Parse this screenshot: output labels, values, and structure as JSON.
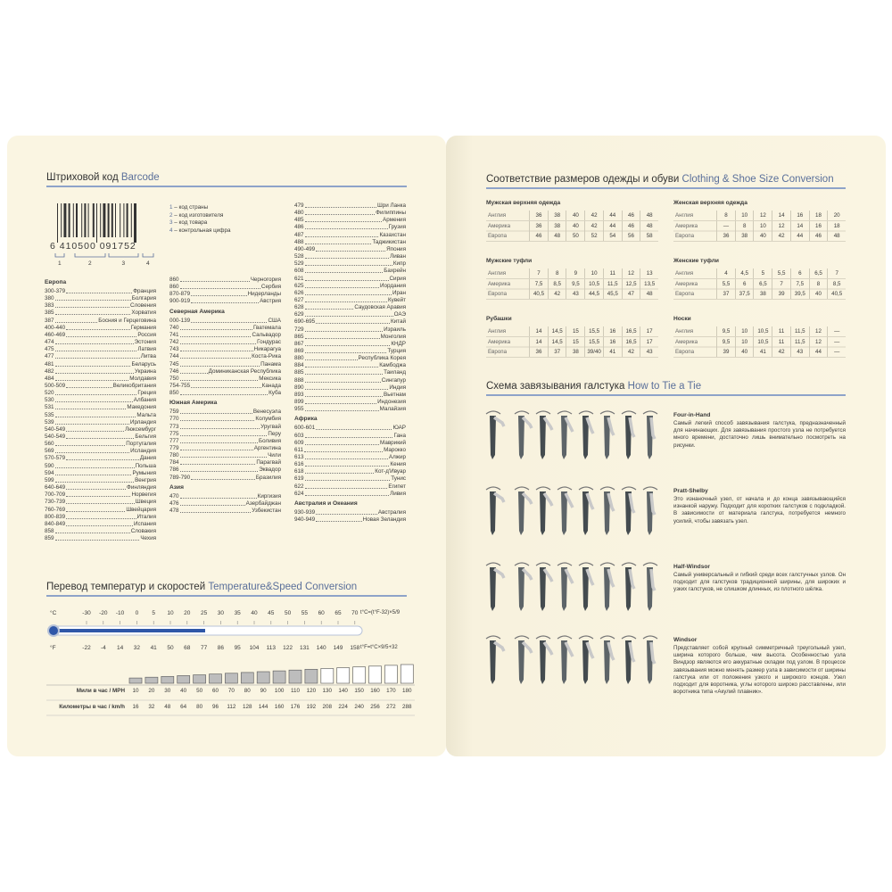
{
  "barcode": {
    "title": "Штриховой код",
    "title_en": "Barcode",
    "digits": "6  410500  091752",
    "legend": [
      {
        "num": "1",
        "text": "– код страны"
      },
      {
        "num": "2",
        "text": "– код изготовителя"
      },
      {
        "num": "3",
        "text": "– код товара"
      },
      {
        "num": "4",
        "text": "– контрольная цифра"
      }
    ],
    "columns": [
      {
        "sections": [
          {
            "heading": "Европа",
            "entries": [
              {
                "code": "300-379",
                "name": "Франция"
              },
              {
                "code": "380",
                "name": "Болгария"
              },
              {
                "code": "383",
                "name": "Словения"
              },
              {
                "code": "385",
                "name": "Хорватия"
              },
              {
                "code": "387",
                "name": "Босния и Герцеговина"
              },
              {
                "code": "400-440",
                "name": "Германия"
              },
              {
                "code": "460-469",
                "name": "Россия"
              },
              {
                "code": "474",
                "name": "Эстония"
              },
              {
                "code": "475",
                "name": "Латвия"
              },
              {
                "code": "477",
                "name": "Литва"
              },
              {
                "code": "481",
                "name": "Беларусь"
              },
              {
                "code": "482",
                "name": "Украина"
              },
              {
                "code": "484",
                "name": "Молдавия"
              },
              {
                "code": "500-509",
                "name": "Великобритания"
              },
              {
                "code": "520",
                "name": "Греция"
              },
              {
                "code": "530",
                "name": "Албания"
              },
              {
                "code": "531",
                "name": "Македония"
              },
              {
                "code": "535",
                "name": "Мальта"
              },
              {
                "code": "539",
                "name": "Ирландия"
              },
              {
                "code": "540-549",
                "name": "Люксембург"
              },
              {
                "code": "540-549",
                "name": "Бельгия"
              },
              {
                "code": "560",
                "name": "Португалия"
              },
              {
                "code": "569",
                "name": "Исландия"
              },
              {
                "code": "570-579",
                "name": "Дания"
              },
              {
                "code": "590",
                "name": "Польша"
              },
              {
                "code": "594",
                "name": "Румыния"
              },
              {
                "code": "599",
                "name": "Венгрия"
              },
              {
                "code": "640-649",
                "name": "Финляндия"
              },
              {
                "code": "700-709",
                "name": "Норвегия"
              },
              {
                "code": "730-739",
                "name": "Швеция"
              },
              {
                "code": "760-769",
                "name": "Швейцария"
              },
              {
                "code": "800-839",
                "name": "Италия"
              },
              {
                "code": "840-849",
                "name": "Испания"
              },
              {
                "code": "858",
                "name": "Словакия"
              },
              {
                "code": "859",
                "name": "Чехия"
              }
            ]
          }
        ]
      },
      {
        "sections": [
          {
            "entries": [
              {
                "code": "860",
                "name": "Черногория"
              },
              {
                "code": "860",
                "name": "Сербия"
              },
              {
                "code": "870-879",
                "name": "Нидерланды"
              },
              {
                "code": "900-919",
                "name": "Австрия"
              }
            ]
          },
          {
            "heading": "Северная Америка",
            "entries": [
              {
                "code": "000-139",
                "name": "США"
              },
              {
                "code": "740",
                "name": "Гватемала"
              },
              {
                "code": "741",
                "name": "Сальвадор"
              },
              {
                "code": "742",
                "name": "Гондурас"
              },
              {
                "code": "743",
                "name": "Никарагуа"
              },
              {
                "code": "744",
                "name": "Коста-Рика"
              },
              {
                "code": "745",
                "name": "Панама"
              },
              {
                "code": "746",
                "name": "Доминиканская Республика"
              },
              {
                "code": "750",
                "name": "Мексика"
              },
              {
                "code": "754-755",
                "name": "Канада"
              },
              {
                "code": "850",
                "name": "Куба"
              }
            ]
          },
          {
            "heading": "Южная Америка",
            "entries": [
              {
                "code": "759",
                "name": "Венесуэла"
              },
              {
                "code": "770",
                "name": "Колумбия"
              },
              {
                "code": "773",
                "name": "Уругвай"
              },
              {
                "code": "775",
                "name": "Перу"
              },
              {
                "code": "777",
                "name": "Боливия"
              },
              {
                "code": "779",
                "name": "Аргентина"
              },
              {
                "code": "780",
                "name": "Чили"
              },
              {
                "code": "784",
                "name": "Парагвай"
              },
              {
                "code": "786",
                "name": "Эквадор"
              },
              {
                "code": "789-790",
                "name": "Бразилия"
              }
            ]
          },
          {
            "heading": "Азия",
            "entries": [
              {
                "code": "470",
                "name": "Киргизия"
              },
              {
                "code": "476",
                "name": "Азербайджан"
              },
              {
                "code": "478",
                "name": "Узбекистан"
              }
            ]
          }
        ]
      },
      {
        "sections": [
          {
            "entries": [
              {
                "code": "479",
                "name": "Шри Ланка"
              },
              {
                "code": "480",
                "name": "Филиппины"
              },
              {
                "code": "485",
                "name": "Армения"
              },
              {
                "code": "486",
                "name": "Грузия"
              },
              {
                "code": "487",
                "name": "Казахстан"
              },
              {
                "code": "488",
                "name": "Таджикистан"
              },
              {
                "code": "490-499",
                "name": "Япония"
              },
              {
                "code": "528",
                "name": "Ливан"
              },
              {
                "code": "529",
                "name": "Кипр"
              },
              {
                "code": "608",
                "name": "Бахрейн"
              },
              {
                "code": "621",
                "name": "Сирия"
              },
              {
                "code": "625",
                "name": "Иордания"
              },
              {
                "code": "626",
                "name": "Иран"
              },
              {
                "code": "627",
                "name": "Кувейт"
              },
              {
                "code": "628",
                "name": "Саудовская Аравия"
              },
              {
                "code": "629",
                "name": "ОАЭ"
              },
              {
                "code": "690-695",
                "name": "Китай"
              },
              {
                "code": "729",
                "name": "Израиль"
              },
              {
                "code": "865",
                "name": "Монголия"
              },
              {
                "code": "867",
                "name": "КНДР"
              },
              {
                "code": "869",
                "name": "Турция"
              },
              {
                "code": "880",
                "name": "Республика Корея"
              },
              {
                "code": "884",
                "name": "Камбоджа"
              },
              {
                "code": "885",
                "name": "Таиланд"
              },
              {
                "code": "888",
                "name": "Сингапур"
              },
              {
                "code": "890",
                "name": "Индия"
              },
              {
                "code": "893",
                "name": "Вьетнам"
              },
              {
                "code": "899",
                "name": "Индонезия"
              },
              {
                "code": "955",
                "name": "Малайзия"
              }
            ]
          },
          {
            "heading": "Африка",
            "entries": [
              {
                "code": "600-601",
                "name": "ЮАР"
              },
              {
                "code": "603",
                "name": "Гана"
              },
              {
                "code": "609",
                "name": "Маврикий"
              },
              {
                "code": "611",
                "name": "Марокко"
              },
              {
                "code": "613",
                "name": "Алжир"
              },
              {
                "code": "616",
                "name": "Кения"
              },
              {
                "code": "618",
                "name": "Кот-д'Ивуар"
              },
              {
                "code": "619",
                "name": "Тунис"
              },
              {
                "code": "622",
                "name": "Египет"
              },
              {
                "code": "624",
                "name": "Ливия"
              }
            ]
          },
          {
            "heading": "Австралия и Океания",
            "entries": [
              {
                "code": "930-939",
                "name": "Австралия"
              },
              {
                "code": "940-949",
                "name": "Новая Зеландия"
              }
            ]
          }
        ]
      }
    ]
  },
  "conversion": {
    "title": "Перевод температур и скоростей",
    "title_en": "Temperature&Speed Conversion",
    "c_label": "°C",
    "f_label": "°F",
    "celsius": [
      -30,
      -20,
      -10,
      0,
      5,
      10,
      20,
      25,
      30,
      35,
      40,
      45,
      50,
      55,
      60,
      65,
      70
    ],
    "fahrenheit": [
      -22,
      -4,
      14,
      32,
      41,
      50,
      68,
      77,
      86,
      95,
      104,
      113,
      122,
      131,
      140,
      149,
      158
    ],
    "formula_c": "t°C=(t°F-32)×5/9",
    "formula_f": "t°F=t°C×9/5+32",
    "mph_label": "Мили в час / MPH",
    "kmh_label": "Километры в час / km/h",
    "mph": [
      10,
      20,
      30,
      40,
      50,
      60,
      70,
      80,
      90,
      100,
      110,
      120,
      130,
      140,
      150,
      160,
      170,
      180
    ],
    "kmh": [
      16,
      32,
      48,
      64,
      80,
      96,
      112,
      128,
      144,
      160,
      176,
      192,
      208,
      224,
      240,
      256,
      272,
      288
    ]
  },
  "sizes": {
    "title": "Соответствие размеров одежды и обуви",
    "title_en": "Clothing & Shoe Size Conversion",
    "tables": [
      {
        "title": "Мужская верхняя одежда",
        "rows": [
          {
            "label": "Англия",
            "cells": [
              "36",
              "38",
              "40",
              "42",
              "44",
              "46",
              "48"
            ]
          },
          {
            "label": "Америка",
            "cells": [
              "36",
              "38",
              "40",
              "42",
              "44",
              "46",
              "48"
            ]
          },
          {
            "label": "Европа",
            "cells": [
              "46",
              "48",
              "50",
              "52",
              "54",
              "56",
              "58"
            ]
          }
        ]
      },
      {
        "title": "Женская верхняя одежда",
        "rows": [
          {
            "label": "Англия",
            "cells": [
              "8",
              "10",
              "12",
              "14",
              "16",
              "18",
              "20"
            ]
          },
          {
            "label": "Америка",
            "cells": [
              "—",
              "8",
              "10",
              "12",
              "14",
              "16",
              "18"
            ]
          },
          {
            "label": "Европа",
            "cells": [
              "36",
              "38",
              "40",
              "42",
              "44",
              "46",
              "48"
            ]
          }
        ]
      },
      {
        "title": "Мужские туфли",
        "rows": [
          {
            "label": "Англия",
            "cells": [
              "7",
              "8",
              "9",
              "10",
              "11",
              "12",
              "13"
            ]
          },
          {
            "label": "Америка",
            "cells": [
              "7,5",
              "8,5",
              "9,5",
              "10,5",
              "11,5",
              "12,5",
              "13,5"
            ]
          },
          {
            "label": "Европа",
            "cells": [
              "40,5",
              "42",
              "43",
              "44,5",
              "45,5",
              "47",
              "48"
            ]
          }
        ]
      },
      {
        "title": "Женские туфли",
        "rows": [
          {
            "label": "Англия",
            "cells": [
              "4",
              "4,5",
              "5",
              "5,5",
              "6",
              "6,5",
              "7"
            ]
          },
          {
            "label": "Америка",
            "cells": [
              "5,5",
              "6",
              "6,5",
              "7",
              "7,5",
              "8",
              "8,5"
            ]
          },
          {
            "label": "Европа",
            "cells": [
              "37",
              "37,5",
              "38",
              "39",
              "39,5",
              "40",
              "40,5"
            ]
          }
        ]
      },
      {
        "title": "Рубашки",
        "rows": [
          {
            "label": "Англия",
            "cells": [
              "14",
              "14,5",
              "15",
              "15,5",
              "16",
              "16,5",
              "17"
            ]
          },
          {
            "label": "Америка",
            "cells": [
              "14",
              "14,5",
              "15",
              "15,5",
              "16",
              "16,5",
              "17"
            ]
          },
          {
            "label": "Европа",
            "cells": [
              "36",
              "37",
              "38",
              "39/40",
              "41",
              "42",
              "43"
            ]
          }
        ]
      },
      {
        "title": "Носки",
        "rows": [
          {
            "label": "Англия",
            "cells": [
              "9,5",
              "10",
              "10,5",
              "11",
              "11,5",
              "12",
              "—"
            ]
          },
          {
            "label": "Америка",
            "cells": [
              "9,5",
              "10",
              "10,5",
              "11",
              "11,5",
              "12",
              "—"
            ]
          },
          {
            "label": "Европа",
            "cells": [
              "39",
              "40",
              "41",
              "42",
              "43",
              "44",
              "—"
            ]
          }
        ]
      }
    ]
  },
  "ties": {
    "title": "Схема завязывания галстука",
    "title_en": "How to Tie a Tie",
    "knots": [
      {
        "name": "Four-in-Hand",
        "text": "Самый легкий способ завязывания галстука, предназначенный для начинающих. Для завязывания простого узла не потребуется много времени, достаточно лишь внимательно посмотреть на рисунки."
      },
      {
        "name": "Pratt-Shelby",
        "text": "Это изнаночный узел, от начала и до конца завязывающийся изнанкой наружу. Подходит для коротких галстуков с подкладкой. В зависимости от материала галстука, потребуется немного усилий, чтобы завязать узел."
      },
      {
        "name": "Half-Windsor",
        "text": "Самый универсальный и гибкий среди всех галстучных узлов. Он подходит для галстуков традиционной ширины, для широких и узких галстуков, не слишком длинных, из плотного шёлка."
      },
      {
        "name": "Windsor",
        "text": "Представляет собой крупный симметричный треугольный узел, ширина которого больше, чем высота. Особенностью узла Виндзор являются его аккуратные складки под узлом. В процессе завязывания можно менять размер узла в зависимости от ширины галстука или от положения узкого и широкого концов. Узел подходит для воротника, углы которого широко расставлены, или воротника типа «Акулий плавник»."
      }
    ]
  }
}
